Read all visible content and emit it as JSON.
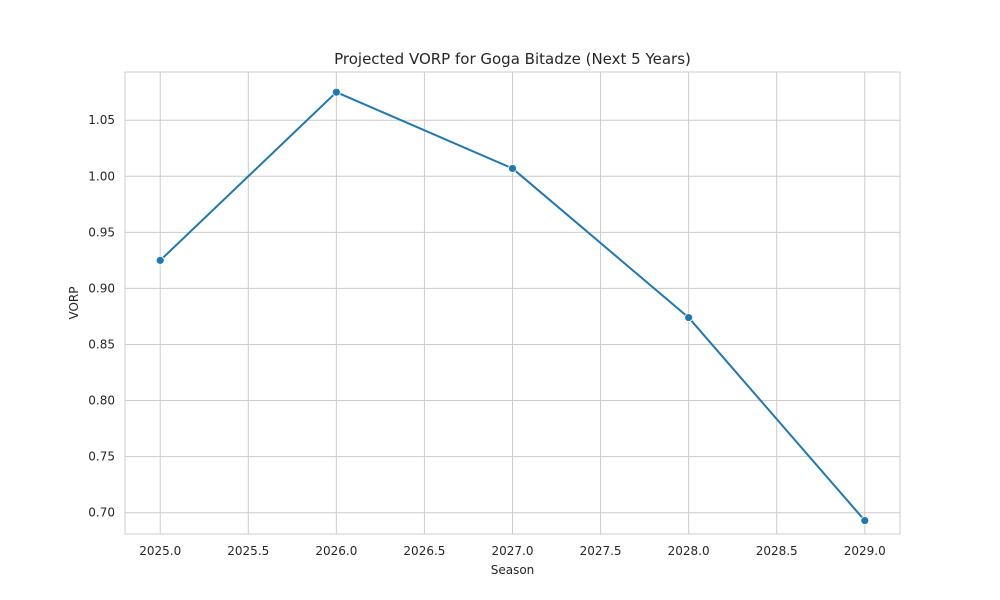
{
  "chart_data": {
    "type": "line",
    "title": "Projected VORP for Goga Bitadze (Next 5 Years)",
    "xlabel": "Season",
    "ylabel": "VORP",
    "xlim": [
      2024.8,
      2029.2
    ],
    "ylim": [
      0.681,
      1.093
    ],
    "x_ticks": [
      "2025.0",
      "2025.5",
      "2026.0",
      "2026.5",
      "2027.0",
      "2027.5",
      "2028.0",
      "2028.5",
      "2029.0"
    ],
    "y_ticks": [
      "0.70",
      "0.75",
      "0.80",
      "0.85",
      "0.90",
      "0.95",
      "1.00",
      "1.05"
    ],
    "grid": true,
    "series": [
      {
        "color": "#1f77b4",
        "marker": "circle",
        "x": [
          2025,
          2026,
          2027,
          2028,
          2029
        ],
        "y": [
          0.925,
          1.075,
          1.007,
          0.874,
          0.693
        ]
      }
    ]
  }
}
